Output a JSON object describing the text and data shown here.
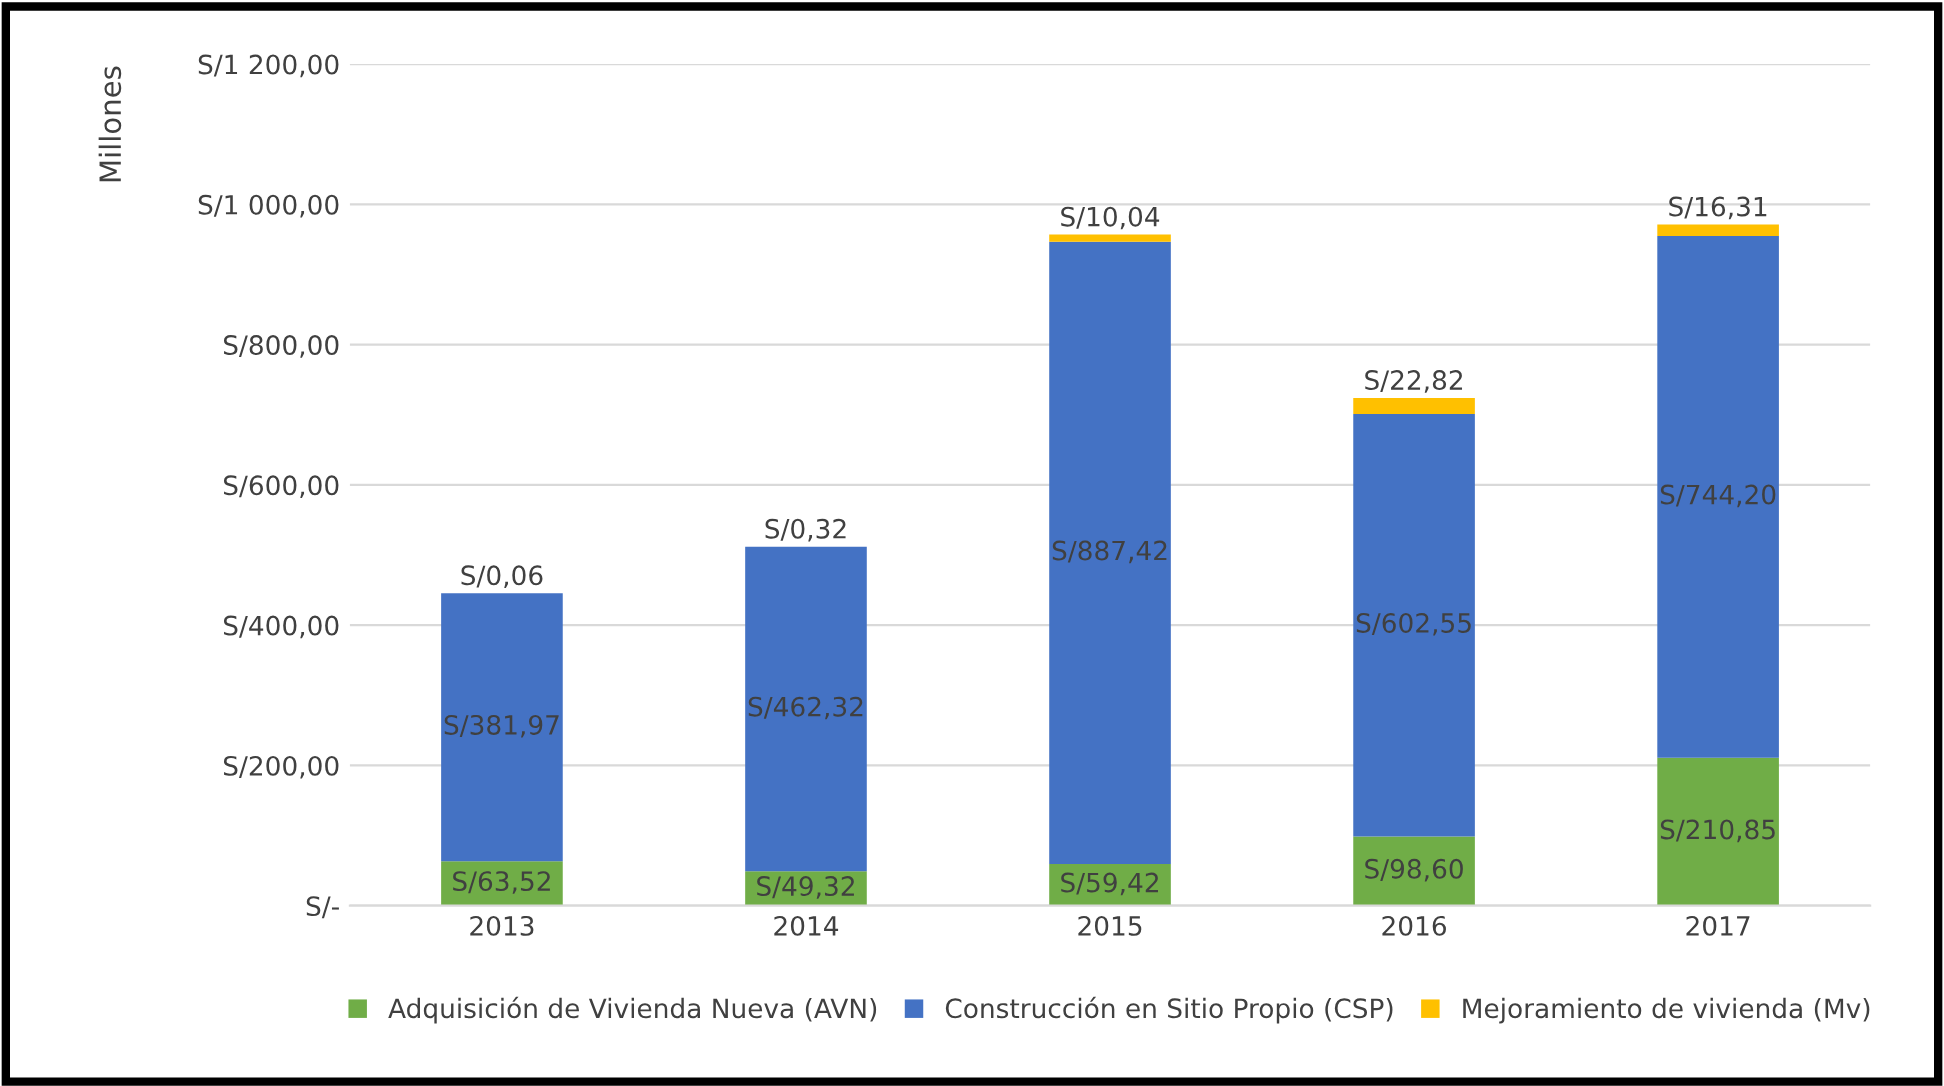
{
  "chart_data": {
    "type": "bar",
    "stacked": true,
    "ylabel": "Millones",
    "categories": [
      "2013",
      "2014",
      "2015",
      "2016",
      "2017"
    ],
    "series": [
      {
        "name": "Adquisición de Vivienda Nueva (AVN)",
        "color": "#70ad47",
        "values": [
          63.52,
          49.32,
          59.42,
          98.6,
          210.85
        ],
        "value_labels": [
          "S/63,52",
          "S/49,32",
          "S/59,42",
          "S/98,60",
          "S/210,85"
        ]
      },
      {
        "name": "Construcción en Sitio Propio (CSP)",
        "color": "#4472c4",
        "values": [
          381.97,
          462.32,
          887.42,
          602.55,
          744.2
        ],
        "value_labels": [
          "S/381,97",
          "S/462,32",
          "S/887,42",
          "S/602,55",
          "S/744,20"
        ]
      },
      {
        "name": "Mejoramiento de vivienda (Mv)",
        "color": "#ffc000",
        "values": [
          0.06,
          0.32,
          10.04,
          22.82,
          16.31
        ],
        "value_labels": [
          "S/0,06",
          "S/0,32",
          "S/10,04",
          "S/22,82",
          "S/16,31"
        ]
      }
    ],
    "ylim": [
      0,
      1200
    ],
    "yticks": [
      {
        "value": 0,
        "label": "S/-"
      },
      {
        "value": 200,
        "label": "S/200,00"
      },
      {
        "value": 400,
        "label": "S/400,00"
      },
      {
        "value": 600,
        "label": "S/600,00"
      },
      {
        "value": 800,
        "label": "S/800,00"
      },
      {
        "value": 1000,
        "label": "S/1 000,00"
      },
      {
        "value": 1200,
        "label": "S/1 200,00"
      }
    ],
    "grid": "y",
    "legend": "bottom"
  }
}
